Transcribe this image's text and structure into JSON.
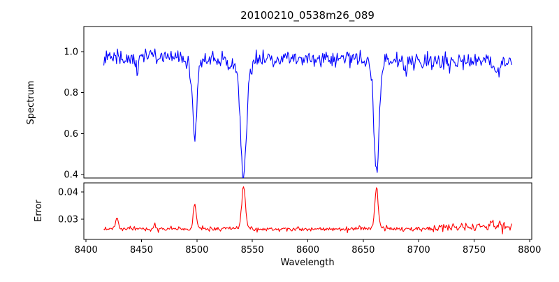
{
  "figure": {
    "title": "20100210_0538m26_089",
    "xlabel": "Wavelength",
    "background": "#ffffff",
    "text_color": "#000000",
    "spine_color": "#000000"
  },
  "chart_data": [
    {
      "type": "line",
      "name": "spectrum",
      "ylabel": "Spectrum",
      "color": "#0000ff",
      "grid": false,
      "legend": false,
      "xlim": [
        8398,
        8802
      ],
      "ylim": [
        0.383,
        1.123
      ],
      "xtick_labels": [
        "8400",
        "8450",
        "8500",
        "8550",
        "8600",
        "8650",
        "8700",
        "8750",
        "8800"
      ],
      "ytick_labels": [
        "0.4",
        "0.6",
        "0.8",
        "1.0"
      ],
      "x_data_range": [
        8416,
        8784
      ],
      "n_points": 480,
      "seed": 20100210,
      "continuum": {
        "level": 0.972,
        "slope_per_unit": -4e-05,
        "wobble_amp": 0.006,
        "wobble_period": 170
      },
      "noise_sigma": 0.021,
      "absorption_lines": [
        {
          "center": 8446,
          "depth": 0.05,
          "sigma": 1.2
        },
        {
          "center": 8498,
          "depth": 0.385,
          "sigma": 2.0
        },
        {
          "center": 8542,
          "depth": 0.565,
          "sigma": 2.6
        },
        {
          "center": 8662,
          "depth": 0.545,
          "sigma": 2.3
        },
        {
          "center": 8688,
          "depth": 0.05,
          "sigma": 1.6
        },
        {
          "center": 8771,
          "depth": 0.09,
          "sigma": 1.8
        }
      ],
      "readings": {
        "continuum_level": 0.97,
        "deepest_minima": {
          "8498": 0.59,
          "8542": 0.41,
          "8662": 0.44
        }
      }
    },
    {
      "type": "line",
      "name": "error",
      "ylabel": "Error",
      "color": "#ff0000",
      "grid": false,
      "legend": false,
      "xlim": [
        8398,
        8802
      ],
      "ylim": [
        0.0225,
        0.0433
      ],
      "xtick_labels": [
        "8400",
        "8450",
        "8500",
        "8550",
        "8600",
        "8650",
        "8700",
        "8750",
        "8800"
      ],
      "ytick_labels": [
        "0.03",
        "0.04"
      ],
      "x_data_range": [
        8416,
        8784
      ],
      "n_points": 480,
      "seed": 538,
      "baseline": {
        "level": 0.0263,
        "rise_start": 8690,
        "rise_per_unit": 1e-05
      },
      "noise_sigma": 0.00042,
      "noise_sigma_right": 0.0009,
      "noise_right_start": 8700,
      "peaks": [
        {
          "center": 8428,
          "height": 0.0043,
          "sigma": 1.1
        },
        {
          "center": 8462,
          "height": 0.0016,
          "sigma": 0.9
        },
        {
          "center": 8498,
          "height": 0.0092,
          "sigma": 1.3
        },
        {
          "center": 8542,
          "height": 0.0158,
          "sigma": 1.6
        },
        {
          "center": 8662,
          "height": 0.016,
          "sigma": 1.4
        },
        {
          "center": 8766,
          "height": 0.0028,
          "sigma": 1.0
        },
        {
          "center": 8773,
          "height": 0.0026,
          "sigma": 0.8
        }
      ],
      "readings": {
        "baseline_level": 0.0265,
        "peak_maxima": {
          "8542": 0.0425,
          "8662": 0.0425,
          "8498": 0.036
        }
      }
    }
  ]
}
